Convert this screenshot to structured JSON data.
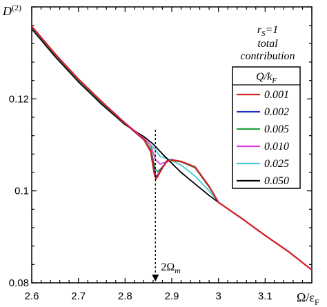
{
  "chart_data": {
    "type": "line",
    "title": "",
    "ylabel": "D(2)",
    "ylabel_main": "D",
    "ylabel_sup": "(2)",
    "xlabel": "Ω/εF",
    "xlabel_main": "Ω/ε",
    "xlabel_sub": "F",
    "xlim": [
      2.6,
      3.2
    ],
    "ylim": [
      0.08,
      0.14
    ],
    "xticks": [
      2.6,
      2.7,
      2.8,
      2.9,
      3.0,
      3.1
    ],
    "xtick_labels": [
      "2.6",
      "2.7",
      "2.8",
      "2.9",
      "3",
      "3.1"
    ],
    "yticks": [
      0.08,
      0.1,
      0.12
    ],
    "ytick_labels": [
      "0.08",
      "0.1",
      "0.12"
    ],
    "grid": false,
    "annotations": {
      "rs_prefix": "r",
      "rs_sub": "S",
      "rs_suffix": "=1",
      "line1": "total",
      "line2": "contribution",
      "marker_label_prefix": "2Ω",
      "marker_label_sub": "m",
      "marker_x": 2.865
    },
    "legend": {
      "placement": "right",
      "title_main": "Q/k",
      "title_sub": "F"
    },
    "series": [
      {
        "name": "0.001",
        "color": "#d62020",
        "x": [
          2.6,
          2.65,
          2.7,
          2.75,
          2.8,
          2.84,
          2.855,
          2.862,
          2.866,
          2.87,
          2.88,
          2.89,
          2.9,
          2.92,
          2.95,
          2.98,
          3.0,
          3.05,
          3.1,
          3.15,
          3.2
        ],
        "y": [
          0.1358,
          0.1298,
          0.1243,
          0.1194,
          0.1147,
          0.1112,
          0.1085,
          0.104,
          0.1025,
          0.1032,
          0.105,
          0.1065,
          0.1067,
          0.1064,
          0.1052,
          0.101,
          0.0975,
          0.094,
          0.0903,
          0.0868,
          0.0828
        ]
      },
      {
        "name": "0.002",
        "color": "#2030c8",
        "x": [
          2.6,
          2.65,
          2.7,
          2.75,
          2.8,
          2.84,
          2.855,
          2.862,
          2.866,
          2.87,
          2.88,
          2.89,
          2.9,
          2.92,
          2.95,
          2.98,
          3.0,
          3.05,
          3.1,
          3.15,
          3.2
        ],
        "y": [
          0.1356,
          0.1297,
          0.1242,
          0.1193,
          0.1146,
          0.1111,
          0.1086,
          0.105,
          0.103,
          0.1035,
          0.1052,
          0.1066,
          0.1068,
          0.1064,
          0.1052,
          0.101,
          0.0975,
          0.094,
          0.0903,
          0.0868,
          0.0828
        ]
      },
      {
        "name": "0.005",
        "color": "#20a040",
        "x": [
          2.6,
          2.65,
          2.7,
          2.75,
          2.8,
          2.84,
          2.855,
          2.865,
          2.87,
          2.88,
          2.89,
          2.9,
          2.92,
          2.95,
          2.98,
          3.0,
          3.05,
          3.1,
          3.15,
          3.2
        ],
        "y": [
          0.1355,
          0.1296,
          0.1241,
          0.1192,
          0.1146,
          0.1112,
          0.1092,
          0.1047,
          0.1042,
          0.1052,
          0.1063,
          0.1066,
          0.1063,
          0.105,
          0.1008,
          0.0975,
          0.094,
          0.0903,
          0.0868,
          0.0828
        ]
      },
      {
        "name": "0.010",
        "color": "#e040e0",
        "x": [
          2.6,
          2.65,
          2.7,
          2.75,
          2.8,
          2.84,
          2.855,
          2.865,
          2.875,
          2.885,
          2.9,
          2.92,
          2.95,
          2.98,
          3.0,
          3.05,
          3.1,
          3.15,
          3.2
        ],
        "y": [
          0.1357,
          0.1298,
          0.1243,
          0.1194,
          0.1148,
          0.1114,
          0.11,
          0.1068,
          0.1058,
          0.1062,
          0.1067,
          0.1064,
          0.1052,
          0.101,
          0.0975,
          0.094,
          0.0903,
          0.0868,
          0.0828
        ]
      },
      {
        "name": "0.025",
        "color": "#40c8d8",
        "x": [
          2.6,
          2.65,
          2.7,
          2.75,
          2.8,
          2.84,
          2.86,
          2.875,
          2.89,
          2.9,
          2.92,
          2.95,
          2.98,
          3.0,
          3.05,
          3.1,
          3.15,
          3.2
        ],
        "y": [
          0.1355,
          0.1296,
          0.1241,
          0.1192,
          0.1146,
          0.1114,
          0.1095,
          0.1075,
          0.107,
          0.1066,
          0.1056,
          0.1032,
          0.1,
          0.0975,
          0.094,
          0.0903,
          0.0868,
          0.0828
        ]
      },
      {
        "name": "0.050",
        "color": "#000000",
        "x": [
          2.6,
          2.65,
          2.7,
          2.75,
          2.8,
          2.84,
          2.86,
          2.88,
          2.9,
          2.92,
          2.95,
          2.98,
          3.0,
          3.05,
          3.1,
          3.15,
          3.2
        ],
        "y": [
          0.1352,
          0.1292,
          0.1237,
          0.1188,
          0.1144,
          0.1118,
          0.1102,
          0.108,
          0.106,
          0.104,
          0.1015,
          0.099,
          0.0975,
          0.094,
          0.0903,
          0.0868,
          0.0828
        ]
      }
    ]
  }
}
